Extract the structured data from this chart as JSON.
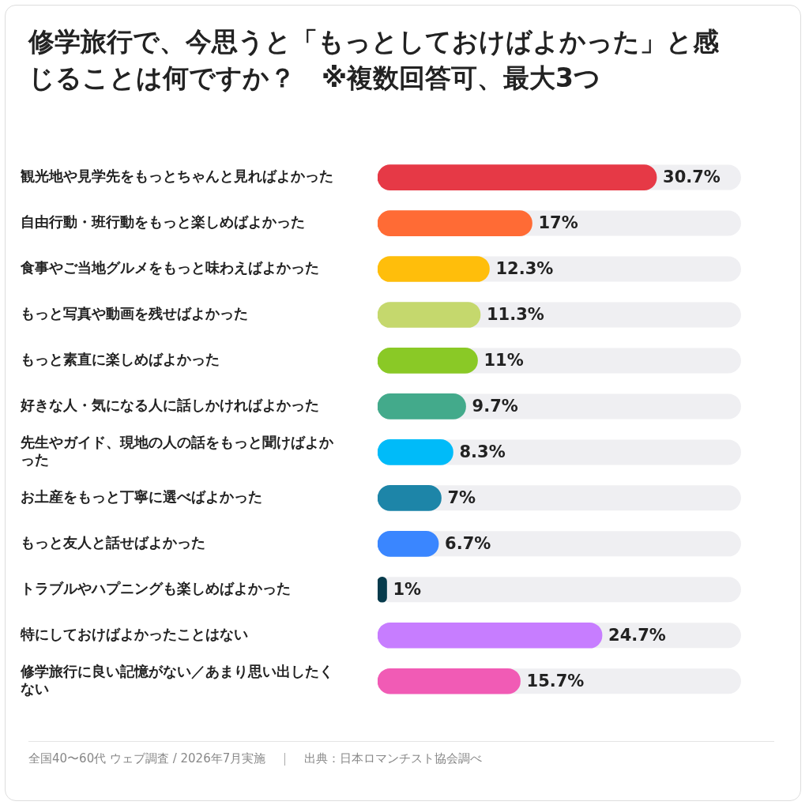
{
  "chart_data": {
    "type": "bar",
    "orientation": "horizontal",
    "title": "修学旅行で、今思うと「もっとしておけばよかった」と感じることは何ですか？　※複数回答可、最大3つ",
    "categories": [
      "観光地や見学先をもっとちゃんと見ればよかった",
      "自由行動・班行動をもっと楽しめばよかった",
      "食事やご当地グルメをもっと味わえばよかった",
      "もっと写真や動画を残せばよかった",
      "もっと素直に楽しめばよかった",
      "好きな人・気になる人に話しかければよかった",
      "先生やガイド、現地の人の話をもっと聞けばよかった",
      "お土産をもっと丁寧に選べばよかった",
      "もっと友人と話せばよかった",
      "トラブルやハプニングも楽しめばよかった",
      "特にしておけばよかったことはない",
      "修学旅行に良い記憶がない／あまり思い出したくない"
    ],
    "values": [
      30.7,
      17,
      12.3,
      11.3,
      11,
      9.7,
      8.3,
      7,
      6.7,
      1,
      24.7,
      15.7
    ],
    "value_labels": [
      "30.7%",
      "17%",
      "12.3%",
      "11.3%",
      "11%",
      "9.7%",
      "8.3%",
      "7%",
      "6.7%",
      "1%",
      "24.7%",
      "15.7%"
    ],
    "colors": [
      "#e63946",
      "#ff6b35",
      "#ffbe0b",
      "#c5d86d",
      "#8ac926",
      "#43aa8b",
      "#00bbf9",
      "#1d85a8",
      "#3a86ff",
      "#073b4c",
      "#c77dff",
      "#f15bb5"
    ],
    "xlim": [
      0,
      40
    ],
    "legend": false,
    "tick_labels": "y",
    "annotations": [
      "全国40〜60代 ウェブ調査 / 2026年7月実施",
      "出典：日本ロマンチスト協会調べ"
    ]
  }
}
